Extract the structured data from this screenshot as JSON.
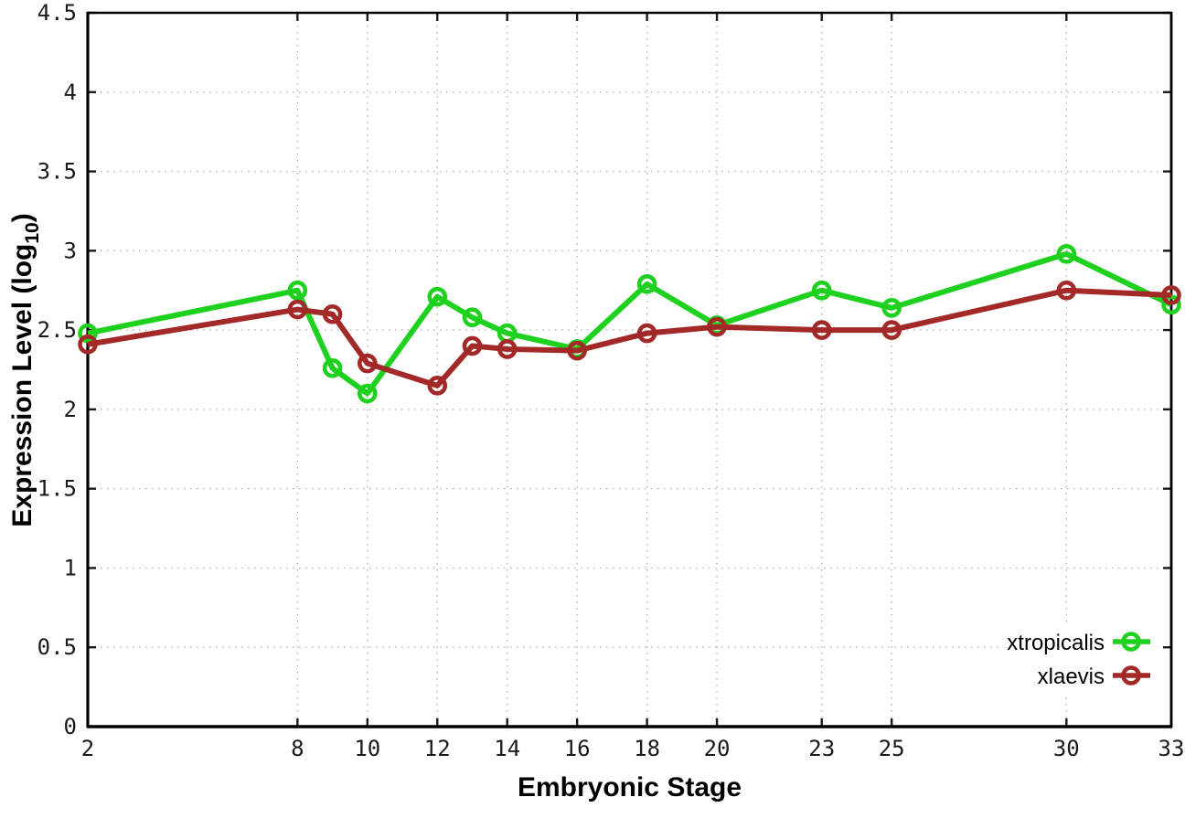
{
  "chart_data": {
    "type": "line",
    "title": "",
    "xlabel": "Embryonic Stage",
    "ylabel": "Expression Level (log10)",
    "ylabel_parts": {
      "pre": "Expression Level (log",
      "sub": "10",
      "post": ")"
    },
    "xlim": [
      2,
      33
    ],
    "ylim": [
      0,
      4.5
    ],
    "x_ticks": [
      2,
      8,
      10,
      12,
      14,
      16,
      18,
      20,
      23,
      25,
      30,
      33
    ],
    "y_ticks": [
      0,
      0.5,
      1,
      1.5,
      2,
      2.5,
      3,
      3.5,
      4,
      4.5
    ],
    "grid": true,
    "legend_position": "inside-bottom-right",
    "colors": {
      "xtropicalis": "#1fd11f",
      "xlaevis": "#a32828",
      "grid": "#b3b3b3",
      "axis": "#000000"
    },
    "series": [
      {
        "name": "xtropicalis",
        "marker": "open-circle",
        "x": [
          2,
          8,
          9,
          10,
          12,
          13,
          14,
          16,
          18,
          20,
          23,
          25,
          30,
          33
        ],
        "y": [
          2.48,
          2.75,
          2.26,
          2.1,
          2.71,
          2.58,
          2.48,
          2.38,
          2.79,
          2.53,
          2.75,
          2.64,
          2.98,
          2.66
        ]
      },
      {
        "name": "xlaevis",
        "marker": "open-circle",
        "x": [
          2,
          8,
          9,
          10,
          12,
          13,
          14,
          16,
          18,
          20,
          23,
          25,
          30,
          33
        ],
        "y": [
          2.41,
          2.63,
          2.6,
          2.29,
          2.15,
          2.4,
          2.38,
          2.37,
          2.48,
          2.52,
          2.5,
          2.5,
          2.75,
          2.72
        ]
      }
    ]
  }
}
